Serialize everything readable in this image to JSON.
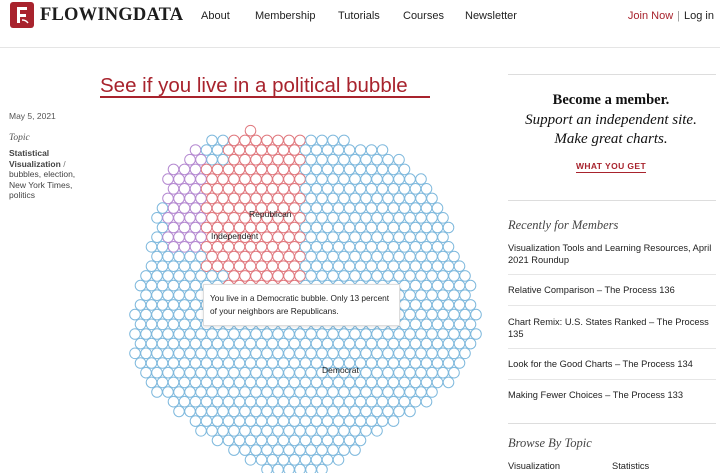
{
  "header": {
    "logo_text": "FLOWINGDATA",
    "nav": [
      "About",
      "Membership",
      "Tutorials",
      "Courses",
      "Newsletter"
    ],
    "join_label": "Join Now",
    "separator": "|",
    "login_label": "Log in"
  },
  "post": {
    "date": "May 5, 2021",
    "topic_label": "Topic",
    "category": "Statistical Visualization",
    "category_sep": "/",
    "tags": "bubbles, election, New York Times, politics",
    "title": "See if you live in a political bubble"
  },
  "bubble_chart": {
    "labels": {
      "republican": "Republican",
      "independent": "Independent",
      "democrat": "Democrat"
    },
    "tooltip": "You live in a Democratic bubble. Only 13 percent of your neighbors are Republicans.",
    "colors": {
      "republican": "#e0787e",
      "independent": "#b58ad1",
      "democrat": "#7fb9dd",
      "accent": "#a8232d"
    }
  },
  "sidebar": {
    "member_title": "Become a member.",
    "member_line1": "Support an independent site.",
    "member_line2": "Make great charts.",
    "member_cta": "WHAT YOU GET",
    "recent_heading": "Recently for Members",
    "recent_posts": [
      "Visualization Tools and Learning Resources, April 2021 Roundup",
      "Relative Comparison – The Process 136",
      "Chart Remix: U.S. States Ranked – The Process 135",
      "Look for the Good Charts – The Process 134",
      "Making Fewer Choices – The Process 133"
    ],
    "browse_heading": "Browse By Topic",
    "topics": [
      "Visualization",
      "Statistics"
    ]
  }
}
